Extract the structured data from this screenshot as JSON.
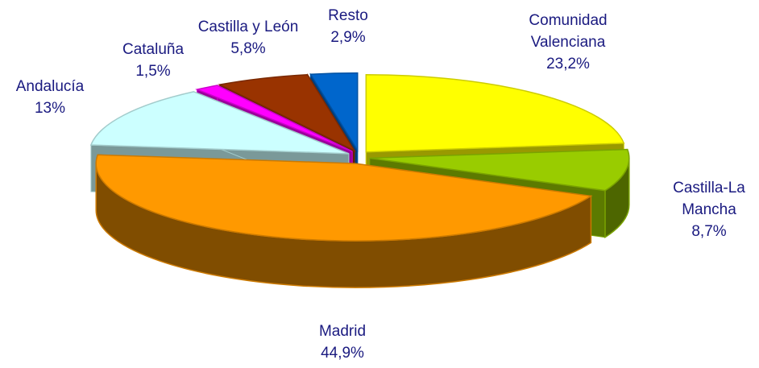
{
  "chart_data": {
    "type": "pie",
    "categories": [
      "Comunidad Valenciana",
      "Castilla-La Mancha",
      "Madrid",
      "Andalucía",
      "Cataluña",
      "Castilla y León",
      "Resto"
    ],
    "values": [
      23.2,
      8.7,
      44.9,
      13,
      1.5,
      5.8,
      2.9
    ],
    "value_labels": [
      "23,2%",
      "8,7%",
      "44,9%",
      "13%",
      "1,5%",
      "5,8%",
      "2,9%"
    ],
    "colors": [
      "#ffff00",
      "#99cc00",
      "#ff9900",
      "#ccffff",
      "#ff00ff",
      "#993300",
      "#0066cc"
    ]
  }
}
